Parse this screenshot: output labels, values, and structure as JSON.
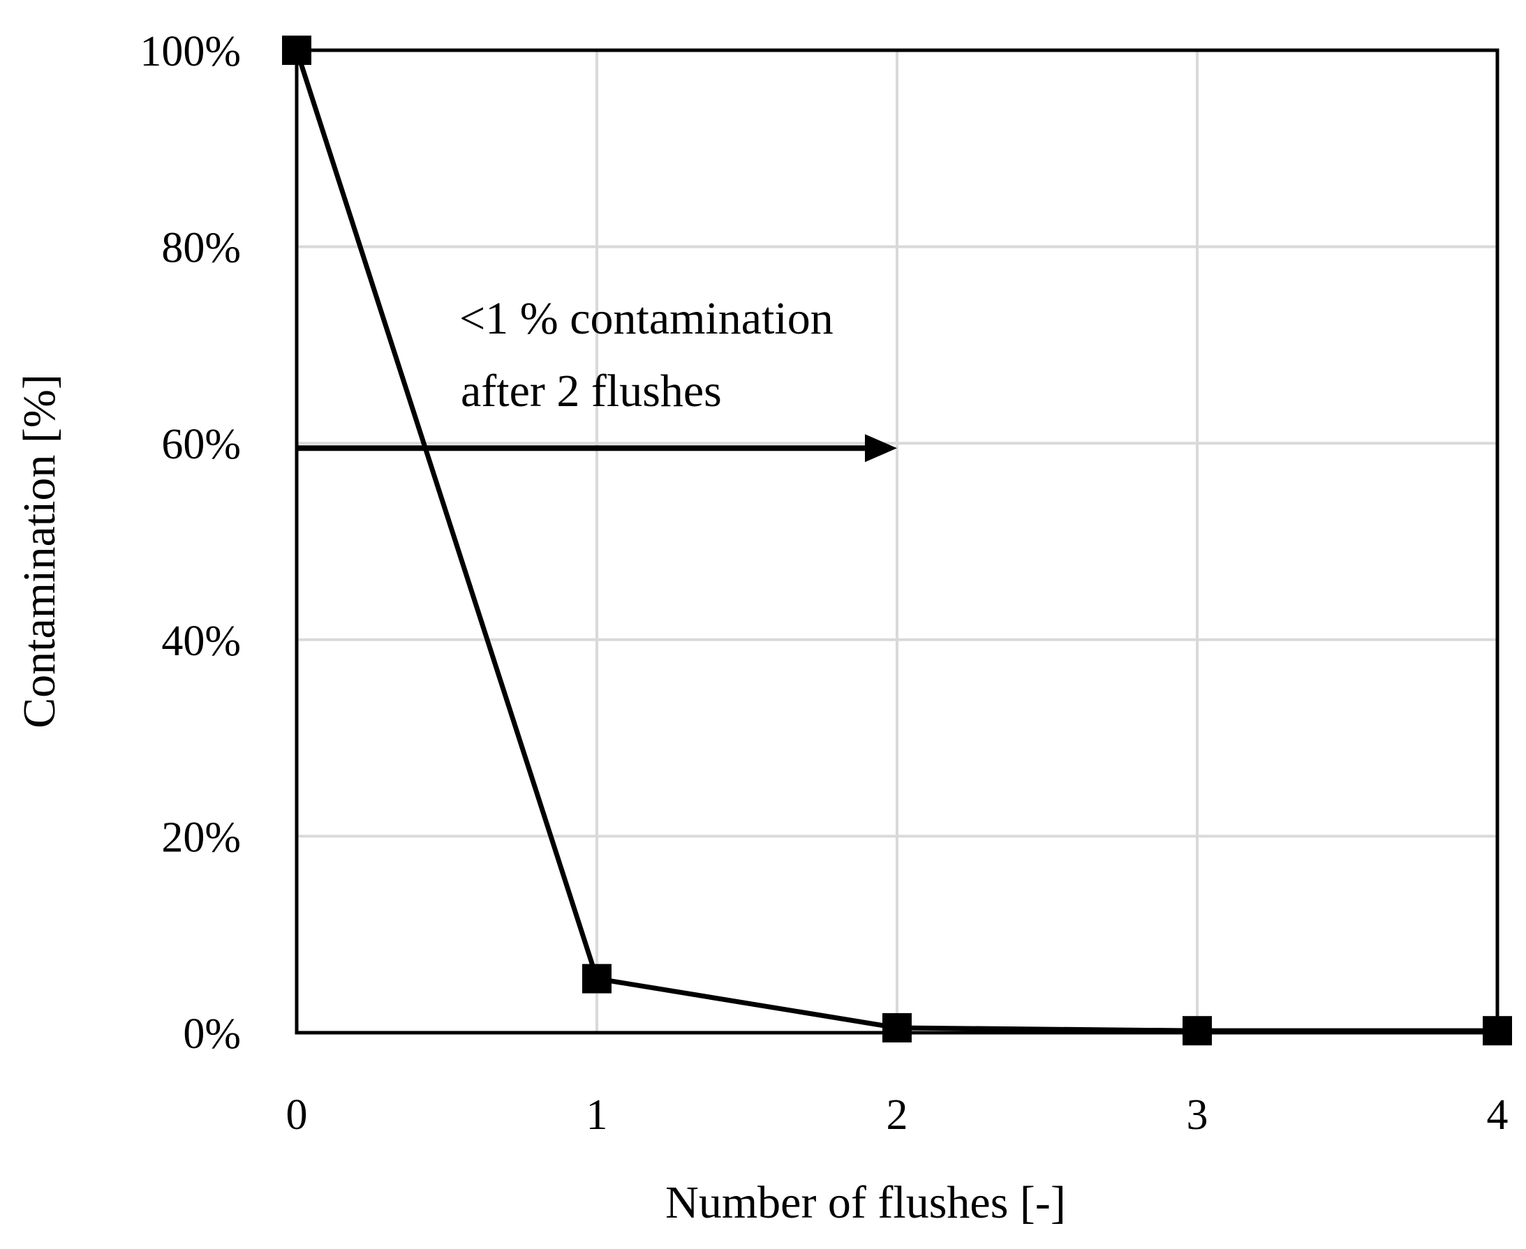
{
  "chart_data": {
    "type": "line",
    "title": "",
    "xlabel": "Number of flushes [-]",
    "ylabel": "Contamination [%]",
    "x": [
      0,
      1,
      2,
      3,
      4
    ],
    "xlim": [
      0,
      4
    ],
    "ylim": [
      0,
      100
    ],
    "x_ticks": [
      "0",
      "1",
      "2",
      "3",
      "4"
    ],
    "y_ticks": [
      0,
      20,
      40,
      60,
      80,
      100
    ],
    "y_tick_labels": [
      "0%",
      "20%",
      "40%",
      "60%",
      "80%",
      "100%"
    ],
    "grid": true,
    "legend": "none",
    "series": [
      {
        "values": [
          100,
          5.5,
          0.5,
          0.2,
          0.2
        ],
        "color": "#000000",
        "marker": "square"
      }
    ],
    "annotations": [
      {
        "text_lines": [
          "<1 % contamination",
          "after 2 flushes"
        ],
        "arrow_from": {
          "x": 0,
          "y": 59.5
        },
        "arrow_to": {
          "x": 2,
          "y": 59.5
        }
      }
    ]
  }
}
